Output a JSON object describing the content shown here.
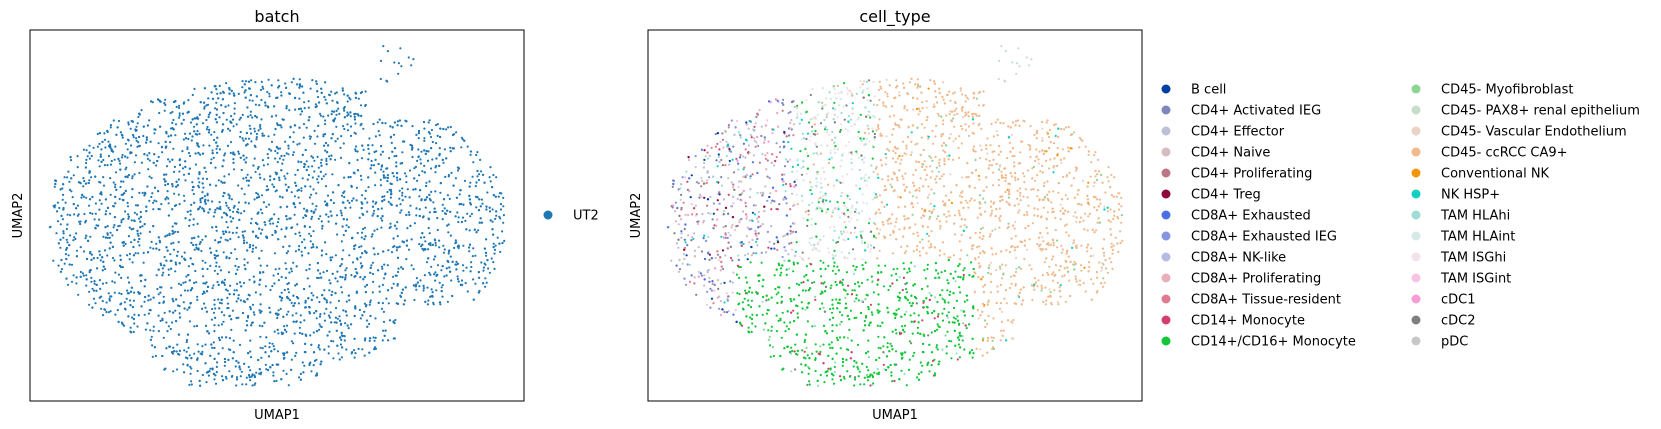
{
  "chart_data": [
    {
      "type": "scatter",
      "title": "batch",
      "xlabel": "UMAP1",
      "ylabel": "UMAP2",
      "xticks": false,
      "yticks": false,
      "legend_position": "right",
      "categories": [
        {
          "name": "UT2",
          "color": "#1f77b4",
          "fraction": 1.0
        }
      ],
      "point_count": 3800
    },
    {
      "type": "scatter",
      "title": "cell_type",
      "xlabel": "UMAP1",
      "ylabel": "UMAP2",
      "xticks": false,
      "yticks": false,
      "legend_position": "right",
      "legend_columns": 2,
      "categories": [
        {
          "name": "B cell",
          "color": "#023fa5"
        },
        {
          "name": "CD4+ Activated IEG",
          "color": "#7d87b9"
        },
        {
          "name": "CD4+ Effector",
          "color": "#bec1d4"
        },
        {
          "name": "CD4+ Naive",
          "color": "#d6bcc0"
        },
        {
          "name": "CD4+ Proliferating",
          "color": "#bb7784"
        },
        {
          "name": "CD4+ Treg",
          "color": "#8e063b"
        },
        {
          "name": "CD8A+ Exhausted",
          "color": "#4a6fe3"
        },
        {
          "name": "CD8A+ Exhausted IEG",
          "color": "#8595e1"
        },
        {
          "name": "CD8A+ NK-like",
          "color": "#b5bbe3"
        },
        {
          "name": "CD8A+ Proliferating",
          "color": "#e6afb9"
        },
        {
          "name": "CD8A+ Tissue-resident",
          "color": "#e07b91"
        },
        {
          "name": "CD14+ Monocyte",
          "color": "#d33f6a"
        },
        {
          "name": "CD14+/CD16+ Monocyte",
          "color": "#11c638"
        },
        {
          "name": "CD45- Myofibroblast",
          "color": "#8dd593"
        },
        {
          "name": "CD45- PAX8+ renal epithelium",
          "color": "#c6dec7"
        },
        {
          "name": "CD45- Vascular Endothelium",
          "color": "#ead3c6"
        },
        {
          "name": "CD45- ccRCC CA9+",
          "color": "#f0b98d"
        },
        {
          "name": "Conventional NK",
          "color": "#ef9708"
        },
        {
          "name": "NK HSP+",
          "color": "#0fcfc0"
        },
        {
          "name": "TAM HLAhi",
          "color": "#9cded6"
        },
        {
          "name": "TAM HLAint",
          "color": "#d5eae7"
        },
        {
          "name": "TAM ISGhi",
          "color": "#f3e1eb"
        },
        {
          "name": "TAM ISGint",
          "color": "#f6c4e1"
        },
        {
          "name": "cDC1",
          "color": "#f79cd4"
        },
        {
          "name": "cDC2",
          "color": "#7f7f7f"
        },
        {
          "name": "pDC",
          "color": "#c7c7c7"
        }
      ],
      "point_count": 3800
    }
  ]
}
